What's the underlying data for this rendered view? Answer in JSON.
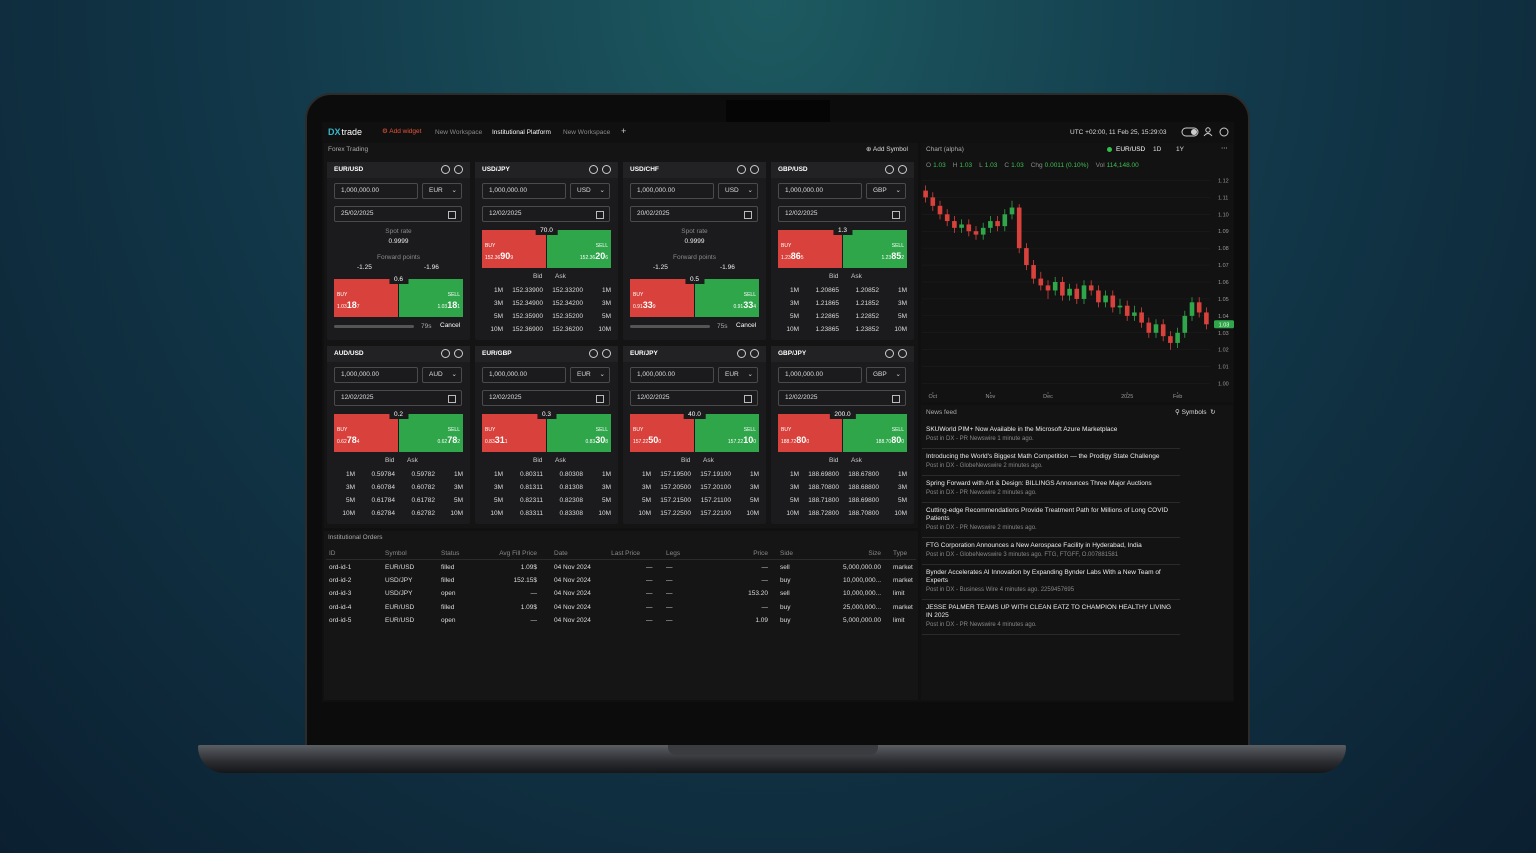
{
  "header": {
    "logo_mark": "DX",
    "logo_text": "trade",
    "add_widget": "Add widget",
    "tabs": [
      "New Workspace",
      "Institutional Platform",
      "New Workspace"
    ],
    "new_tab": "+",
    "clock": "UTC +02:00, 11 Feb 25, 15:29:03"
  },
  "forex": {
    "title": "Forex Trading",
    "add_symbol": "Add Symbol",
    "buy_label": "BUY",
    "sell_label": "SELL",
    "bid": "Bid",
    "ask": "Ask",
    "spot_label": "Spot rate",
    "fwd_label": "Forward points",
    "cancel": "Cancel",
    "widgets": [
      {
        "pair": "EUR/USD",
        "amount": "1,000,000.00",
        "currency": "EUR",
        "date": "25/02/2025",
        "spot": "0.9999",
        "fwd": [
          "-1.25",
          "-1.96"
        ],
        "spread": "0.6",
        "buy": [
          "1.03",
          "18",
          "7"
        ],
        "sell": [
          "1.03",
          "18",
          "1"
        ],
        "timer": "79s"
      },
      {
        "pair": "USD/JPY",
        "amount": "1,000,000.00",
        "currency": "USD",
        "date": "12/02/2025",
        "spread": "70.0",
        "buy": [
          "152.36",
          "90",
          "9"
        ],
        "sell": [
          "152.36",
          "20",
          "6"
        ],
        "rows": [
          [
            "1M",
            "152.33900",
            "152.33200"
          ],
          [
            "3M",
            "152.34900",
            "152.34200"
          ],
          [
            "5M",
            "152.35900",
            "152.35200"
          ],
          [
            "10M",
            "152.36900",
            "152.36200"
          ]
        ]
      },
      {
        "pair": "USD/CHF",
        "amount": "1,000,000.00",
        "currency": "USD",
        "date": "20/02/2025",
        "spot": "0.9999",
        "fwd": [
          "-1.25",
          "-1.96"
        ],
        "spread": "0.5",
        "buy": [
          "0.91",
          "33",
          "9"
        ],
        "sell": [
          "0.91",
          "33",
          "4"
        ],
        "timer": "75s"
      },
      {
        "pair": "GBP/USD",
        "amount": "1,000,000.00",
        "currency": "GBP",
        "date": "12/02/2025",
        "spread": "1.3",
        "buy": [
          "1.23",
          "86",
          "5"
        ],
        "sell": [
          "1.23",
          "85",
          "2"
        ],
        "rows": [
          [
            "1M",
            "1.20865",
            "1.20852"
          ],
          [
            "3M",
            "1.21865",
            "1.21852"
          ],
          [
            "5M",
            "1.22865",
            "1.22852"
          ],
          [
            "10M",
            "1.23865",
            "1.23852"
          ]
        ]
      },
      {
        "pair": "AUD/USD",
        "amount": "1,000,000.00",
        "currency": "AUD",
        "date": "12/02/2025",
        "spread": "0.2",
        "buy": [
          "0.62",
          "78",
          "4"
        ],
        "sell": [
          "0.62",
          "78",
          "2"
        ],
        "rows": [
          [
            "1M",
            "0.59784",
            "0.59782"
          ],
          [
            "3M",
            "0.60784",
            "0.60782"
          ],
          [
            "5M",
            "0.61784",
            "0.61782"
          ],
          [
            "10M",
            "0.62784",
            "0.62782"
          ]
        ]
      },
      {
        "pair": "EUR/GBP",
        "amount": "1,000,000.00",
        "currency": "EUR",
        "date": "12/02/2025",
        "spread": "0.3",
        "buy": [
          "0.83",
          "31",
          "1"
        ],
        "sell": [
          "0.83",
          "30",
          "8"
        ],
        "rows": [
          [
            "1M",
            "0.80311",
            "0.80308"
          ],
          [
            "3M",
            "0.81311",
            "0.81308"
          ],
          [
            "5M",
            "0.82311",
            "0.82308"
          ],
          [
            "10M",
            "0.83311",
            "0.83308"
          ]
        ]
      },
      {
        "pair": "EUR/JPY",
        "amount": "1,000,000.00",
        "currency": "EUR",
        "date": "12/02/2025",
        "spread": "40.0",
        "buy": [
          "157.22",
          "50",
          "0"
        ],
        "sell": [
          "157.22",
          "10",
          "0"
        ],
        "rows": [
          [
            "1M",
            "157.19500",
            "157.19100"
          ],
          [
            "3M",
            "157.20500",
            "157.20100"
          ],
          [
            "5M",
            "157.21500",
            "157.21100"
          ],
          [
            "10M",
            "157.22500",
            "157.22100"
          ]
        ]
      },
      {
        "pair": "GBP/JPY",
        "amount": "1,000,000.00",
        "currency": "GBP",
        "date": "12/02/2025",
        "spread": "200.0",
        "buy": [
          "188.72",
          "80",
          "0"
        ],
        "sell": [
          "188.70",
          "80",
          "0"
        ],
        "rows": [
          [
            "1M",
            "188.69800",
            "188.67800"
          ],
          [
            "3M",
            "188.70800",
            "188.68800"
          ],
          [
            "5M",
            "188.71800",
            "188.69800"
          ],
          [
            "10M",
            "188.72800",
            "188.70800"
          ]
        ]
      }
    ]
  },
  "orders": {
    "title": "Institutional Orders",
    "columns": [
      "ID",
      "Symbol",
      "Status",
      "Avg Fill Price",
      "Date",
      "Last Price",
      "Legs",
      "Price",
      "Side",
      "Size",
      "Type"
    ],
    "rows": [
      [
        "ord-id-1",
        "EUR/USD",
        "filled",
        "1.09$",
        "04 Nov 2024",
        "—",
        "—",
        "—",
        "sell",
        "5,000,000.00",
        "market"
      ],
      [
        "ord-id-2",
        "USD/JPY",
        "filled",
        "152.15$",
        "04 Nov 2024",
        "—",
        "—",
        "—",
        "buy",
        "10,000,000...",
        "market"
      ],
      [
        "ord-id-3",
        "USD/JPY",
        "open",
        "—",
        "04 Nov 2024",
        "—",
        "—",
        "153.20",
        "sell",
        "10,000,000...",
        "limit"
      ],
      [
        "ord-id-4",
        "EUR/USD",
        "filled",
        "1.09$",
        "04 Nov 2024",
        "—",
        "—",
        "—",
        "buy",
        "25,000,000...",
        "market"
      ],
      [
        "ord-id-5",
        "EUR/USD",
        "open",
        "—",
        "04 Nov 2024",
        "—",
        "—",
        "1.09",
        "buy",
        "5,000,000.00",
        "limit"
      ]
    ]
  },
  "chart_panel": {
    "title": "Chart (alpha)",
    "symbol": "EUR/USD",
    "interval": "1D",
    "range": "1Y",
    "ohlc": [
      {
        "label": "O",
        "value": "1.03"
      },
      {
        "label": "H",
        "value": "1.03"
      },
      {
        "label": "L",
        "value": "1.03"
      },
      {
        "label": "C",
        "value": "1.03"
      },
      {
        "label": "Chg",
        "value": "0.0011 (0.10%)"
      },
      {
        "label": "Vol",
        "value": "114,148.00"
      }
    ],
    "last_label": "1.03"
  },
  "chart_data": {
    "type": "candlestick",
    "up_color": "#2fa64a",
    "down_color": "#d9423c",
    "open": [
      1.114,
      1.11,
      1.105,
      1.1,
      1.096,
      1.092,
      1.094,
      1.09,
      1.088,
      1.092,
      1.096,
      1.093,
      1.1,
      1.104,
      1.08,
      1.07,
      1.062,
      1.058,
      1.055,
      1.06,
      1.052,
      1.056,
      1.05,
      1.058,
      1.055,
      1.048,
      1.052,
      1.045,
      1.046,
      1.04,
      1.042,
      1.036,
      1.03,
      1.035,
      1.028,
      1.024,
      1.03,
      1.04,
      1.048,
      1.042
    ],
    "high": [
      1.117,
      1.113,
      1.108,
      1.103,
      1.099,
      1.097,
      1.097,
      1.093,
      1.095,
      1.099,
      1.099,
      1.103,
      1.108,
      1.106,
      1.083,
      1.073,
      1.066,
      1.061,
      1.063,
      1.063,
      1.059,
      1.059,
      1.061,
      1.061,
      1.058,
      1.055,
      1.055,
      1.05,
      1.049,
      1.046,
      1.045,
      1.039,
      1.038,
      1.038,
      1.031,
      1.033,
      1.043,
      1.051,
      1.051,
      1.045
    ],
    "low": [
      1.107,
      1.102,
      1.097,
      1.093,
      1.089,
      1.089,
      1.087,
      1.085,
      1.085,
      1.089,
      1.09,
      1.09,
      1.097,
      1.077,
      1.067,
      1.059,
      1.055,
      1.05,
      1.052,
      1.049,
      1.049,
      1.047,
      1.047,
      1.052,
      1.045,
      1.045,
      1.042,
      1.041,
      1.037,
      1.037,
      1.033,
      1.027,
      1.027,
      1.025,
      1.02,
      1.021,
      1.027,
      1.037,
      1.039,
      1.032
    ],
    "close": [
      1.11,
      1.105,
      1.1,
      1.096,
      1.092,
      1.094,
      1.09,
      1.088,
      1.092,
      1.096,
      1.093,
      1.1,
      1.104,
      1.08,
      1.07,
      1.062,
      1.058,
      1.055,
      1.06,
      1.052,
      1.056,
      1.05,
      1.058,
      1.055,
      1.048,
      1.052,
      1.045,
      1.046,
      1.04,
      1.042,
      1.036,
      1.03,
      1.035,
      1.028,
      1.024,
      1.03,
      1.04,
      1.048,
      1.042,
      1.035
    ],
    "ylim": [
      0.995,
      1.125
    ],
    "yticks": [
      {
        "value": 1,
        "label": "1.00"
      },
      1.01,
      1.02,
      1.03,
      1.04,
      1.05,
      1.06,
      1.07,
      1.08,
      1.09,
      {
        "value": 1.1,
        "label": "1.10"
      },
      1.11,
      1.12
    ],
    "xticks": [
      {
        "value": 1,
        "label": "Oct"
      },
      {
        "value": 9,
        "label": "Nov"
      },
      {
        "value": 17,
        "label": "Dec"
      },
      {
        "value": 28,
        "label": "2025"
      },
      {
        "value": 35,
        "label": "Feb"
      }
    ]
  },
  "news": {
    "title": "News feed",
    "symbols": "Symbols",
    "items": [
      {
        "headline": "SKUWorld PIM+ Now Available in the Microsoft Azure Marketplace",
        "meta": "Post in DX - PR Newswire 1 minute ago."
      },
      {
        "headline": "Introducing the World's Biggest Math Competition — the Prodigy State Challenge",
        "meta": "Post in DX - GlobeNewswire 2 minutes ago."
      },
      {
        "headline": "Spring Forward with Art & Design: BILLINGS Announces Three Major Auctions",
        "meta": "Post in DX - PR Newswire 2 minutes ago."
      },
      {
        "headline": "Cutting-edge Recommendations Provide Treatment Path for Millions of Long COVID Patients",
        "meta": "Post in DX - PR Newswire 2 minutes ago."
      },
      {
        "headline": "FTG Corporation Announces a New Aerospace Facility in Hyderabad, India",
        "meta": "Post in DX - GlobeNewswire 3 minutes ago. FTG, FTGFF, O.007881581"
      },
      {
        "headline": "Bynder Accelerates AI Innovation by Expanding Bynder Labs With a New Team of Experts",
        "meta": "Post in DX - Business Wire 4 minutes ago. 2259457695"
      },
      {
        "headline": "JESSE PALMER TEAMS UP WITH CLEAN EATZ TO CHAMPION HEALTHY LIVING IN 2025",
        "meta": "Post in DX - PR Newswire 4 minutes ago."
      }
    ]
  }
}
